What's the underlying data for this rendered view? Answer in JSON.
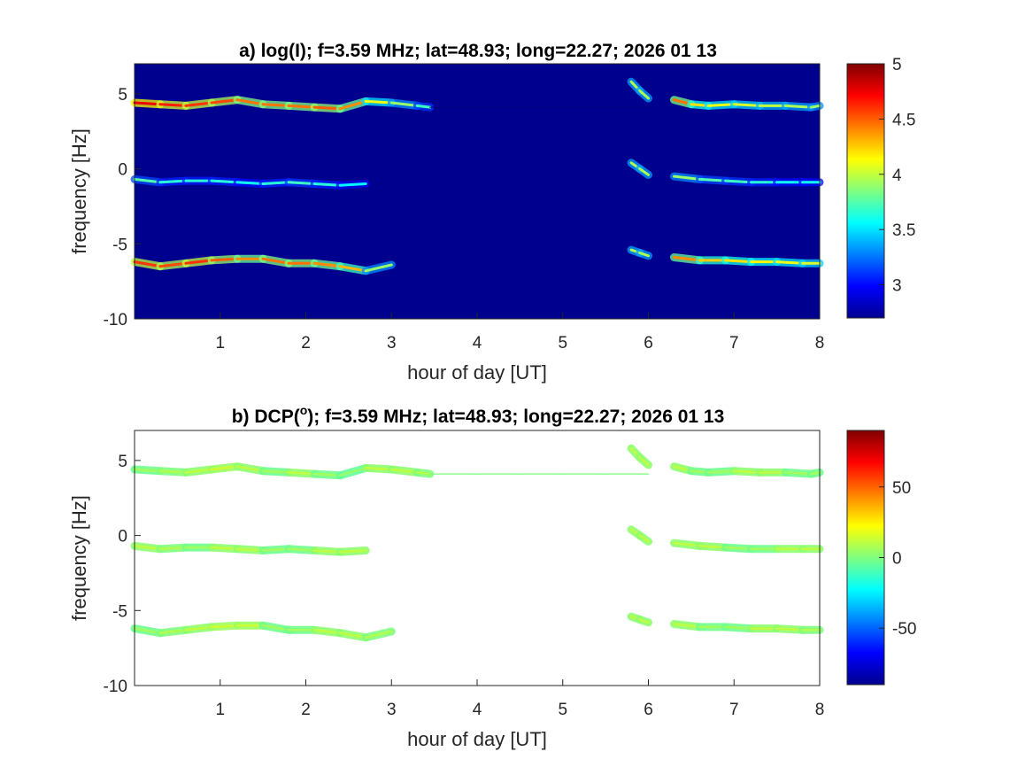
{
  "chart_data": [
    {
      "type": "heatmap",
      "panel": "a",
      "title": "a) log(I); f=3.59 MHz;  lat=48.93; long=22.27; 2026 01 13",
      "xlabel": "hour of day [UT]",
      "ylabel": "frequency [Hz]",
      "xlim": [
        0,
        8
      ],
      "ylim": [
        -10,
        7
      ],
      "xticks": [
        "1",
        "2",
        "3",
        "4",
        "5",
        "6",
        "7",
        "8"
      ],
      "yticks": [
        "5",
        "0",
        "-5",
        "-10"
      ],
      "colorbar": {
        "range": [
          2.7,
          5
        ],
        "ticks": [
          "5",
          "4.5",
          "4",
          "3.5",
          "3"
        ],
        "colormap": "jet"
      },
      "background_color": "#00008f",
      "series": [
        {
          "x": [
            0.0,
            0.3,
            0.6,
            0.9,
            1.2,
            1.5,
            1.8,
            2.1,
            2.4,
            2.7,
            3.0,
            3.3,
            3.45
          ],
          "y": [
            4.4,
            4.3,
            4.2,
            4.4,
            4.6,
            4.3,
            4.2,
            4.1,
            4.0,
            4.5,
            4.4,
            4.2,
            4.1
          ],
          "intensity": [
            4.8,
            4.7,
            4.6,
            4.6,
            4.5,
            4.4,
            4.5,
            4.4,
            4.6,
            4.2,
            4.0,
            3.8,
            3.6
          ]
        },
        {
          "x": [
            3.45,
            4.0,
            4.5,
            5.0,
            5.5,
            6.0
          ],
          "y": [
            4.1,
            4.1,
            4.1,
            4.1,
            4.1,
            4.1
          ],
          "intensity": [
            3.2,
            3.1,
            3.1,
            3.1,
            3.1,
            3.1
          ]
        },
        {
          "x": [
            6.3,
            6.5,
            6.7,
            7.0,
            7.3,
            7.6,
            7.9,
            8.0
          ],
          "y": [
            4.6,
            4.3,
            4.2,
            4.3,
            4.2,
            4.2,
            4.1,
            4.2
          ],
          "intensity": [
            4.6,
            4.3,
            4.1,
            4.1,
            4.0,
            4.0,
            3.9,
            3.9
          ]
        },
        {
          "x": [
            0.0,
            0.3,
            0.6,
            0.9,
            1.2,
            1.5,
            1.8,
            2.1,
            2.4,
            2.7
          ],
          "y": [
            -0.7,
            -0.9,
            -0.8,
            -0.8,
            -0.9,
            -1.0,
            -0.9,
            -1.0,
            -1.1,
            -1.0
          ],
          "intensity": [
            3.8,
            3.7,
            3.6,
            3.7,
            3.6,
            3.6,
            3.7,
            3.7,
            3.6,
            3.5
          ]
        },
        {
          "x": [
            6.3,
            6.6,
            6.9,
            7.2,
            7.5,
            7.8,
            8.0
          ],
          "y": [
            -0.5,
            -0.7,
            -0.8,
            -0.9,
            -0.9,
            -0.9,
            -0.9
          ],
          "intensity": [
            4.0,
            3.8,
            3.7,
            3.7,
            3.6,
            3.6,
            3.6
          ]
        },
        {
          "x": [
            0.0,
            0.3,
            0.6,
            0.9,
            1.2,
            1.5,
            1.8,
            2.1,
            2.4,
            2.7,
            3.0
          ],
          "y": [
            -6.2,
            -6.5,
            -6.3,
            -6.1,
            -6.0,
            -6.0,
            -6.3,
            -6.3,
            -6.5,
            -6.8,
            -6.4
          ],
          "intensity": [
            4.7,
            4.5,
            4.6,
            4.6,
            4.4,
            4.4,
            4.5,
            4.4,
            4.4,
            4.2,
            3.6
          ]
        },
        {
          "x": [
            6.3,
            6.6,
            6.9,
            7.2,
            7.5,
            7.8,
            8.0
          ],
          "y": [
            -5.9,
            -6.1,
            -6.1,
            -6.2,
            -6.2,
            -6.3,
            -6.3
          ],
          "intensity": [
            4.5,
            4.3,
            4.2,
            4.2,
            4.1,
            4.1,
            4.0
          ]
        },
        {
          "x": [
            5.8,
            5.9,
            6.0
          ],
          "y": [
            5.8,
            5.2,
            4.7
          ],
          "intensity": [
            3.9,
            4.0,
            3.9
          ]
        },
        {
          "x": [
            5.8,
            5.9,
            6.0
          ],
          "y": [
            0.4,
            0.0,
            -0.4
          ],
          "intensity": [
            3.9,
            4.0,
            3.9
          ]
        },
        {
          "x": [
            5.8,
            5.9,
            6.0
          ],
          "y": [
            -5.4,
            -5.6,
            -5.8
          ],
          "intensity": [
            3.9,
            4.0,
            3.9
          ]
        }
      ]
    },
    {
      "type": "heatmap",
      "panel": "b",
      "title": "b) DCP(°); f=3.59 MHz;  lat=48.93; long=22.27; 2026 01 13",
      "title_parts": [
        "b) DCP(",
        "o",
        "); f=3.59 MHz;  lat=48.93; long=22.27; 2026 01 13"
      ],
      "xlabel": "hour of day [UT]",
      "ylabel": "frequency [Hz]",
      "xlim": [
        0,
        8
      ],
      "ylim": [
        -10,
        7
      ],
      "xticks": [
        "1",
        "2",
        "3",
        "4",
        "5",
        "6",
        "7",
        "8"
      ],
      "yticks": [
        "5",
        "0",
        "-5",
        "-10"
      ],
      "colorbar": {
        "range": [
          -90,
          90
        ],
        "ticks": [
          "50",
          "0",
          "-50"
        ],
        "colormap": "jet"
      },
      "background_color": "#ffffff",
      "series": [
        {
          "x": [
            0.0,
            0.3,
            0.6,
            0.9,
            1.2,
            1.5,
            1.8,
            2.1,
            2.4,
            2.7,
            3.0,
            3.3,
            3.45
          ],
          "y": [
            4.4,
            4.3,
            4.2,
            4.4,
            4.6,
            4.3,
            4.2,
            4.1,
            4.0,
            4.5,
            4.4,
            4.2,
            4.1
          ],
          "dcp": [
            0,
            -5,
            5,
            0,
            10,
            -5,
            0,
            5,
            -10,
            0,
            5,
            0,
            0
          ]
        },
        {
          "x": [
            3.45,
            4.0,
            4.5,
            5.0,
            5.5,
            6.0
          ],
          "y": [
            4.1,
            4.1,
            4.1,
            4.1,
            4.1,
            4.1
          ],
          "dcp": [
            0,
            0,
            0,
            0,
            0,
            0
          ]
        },
        {
          "x": [
            6.3,
            6.5,
            6.7,
            7.0,
            7.3,
            7.6,
            7.9,
            8.0
          ],
          "y": [
            4.6,
            4.3,
            4.2,
            4.3,
            4.2,
            4.2,
            4.1,
            4.2
          ],
          "dcp": [
            5,
            0,
            -5,
            0,
            5,
            0,
            -5,
            0
          ]
        },
        {
          "x": [
            0.0,
            0.3,
            0.6,
            0.9,
            1.2,
            1.5,
            1.8,
            2.1,
            2.4,
            2.7
          ],
          "y": [
            -0.7,
            -0.9,
            -0.8,
            -0.8,
            -0.9,
            -1.0,
            -0.9,
            -1.0,
            -1.1,
            -1.0
          ],
          "dcp": [
            0,
            5,
            -5,
            0,
            5,
            0,
            -5,
            0,
            5,
            0
          ]
        },
        {
          "x": [
            6.3,
            6.6,
            6.9,
            7.2,
            7.5,
            7.8,
            8.0
          ],
          "y": [
            -0.5,
            -0.7,
            -0.8,
            -0.9,
            -0.9,
            -0.9,
            -0.9
          ],
          "dcp": [
            0,
            5,
            0,
            -5,
            0,
            5,
            0
          ]
        },
        {
          "x": [
            0.0,
            0.3,
            0.6,
            0.9,
            1.2,
            1.5,
            1.8,
            2.1,
            2.4,
            2.7,
            3.0
          ],
          "y": [
            -6.2,
            -6.5,
            -6.3,
            -6.1,
            -6.0,
            -6.0,
            -6.3,
            -6.3,
            -6.5,
            -6.8,
            -6.4
          ],
          "dcp": [
            0,
            -5,
            5,
            0,
            10,
            0,
            -5,
            0,
            5,
            0,
            0
          ]
        },
        {
          "x": [
            6.3,
            6.6,
            6.9,
            7.2,
            7.5,
            7.8,
            8.0
          ],
          "y": [
            -5.9,
            -6.1,
            -6.1,
            -6.2,
            -6.2,
            -6.3,
            -6.3
          ],
          "dcp": [
            5,
            0,
            -5,
            0,
            5,
            0,
            0
          ]
        },
        {
          "x": [
            5.8,
            5.9,
            6.0
          ],
          "y": [
            5.8,
            5.2,
            4.7
          ],
          "dcp": [
            0,
            5,
            0
          ]
        },
        {
          "x": [
            5.8,
            5.9,
            6.0
          ],
          "y": [
            0.4,
            0.0,
            -0.4
          ],
          "dcp": [
            0,
            5,
            0
          ]
        },
        {
          "x": [
            5.8,
            5.9,
            6.0
          ],
          "y": [
            -5.4,
            -5.6,
            -5.8
          ],
          "dcp": [
            0,
            5,
            0
          ]
        }
      ]
    }
  ]
}
